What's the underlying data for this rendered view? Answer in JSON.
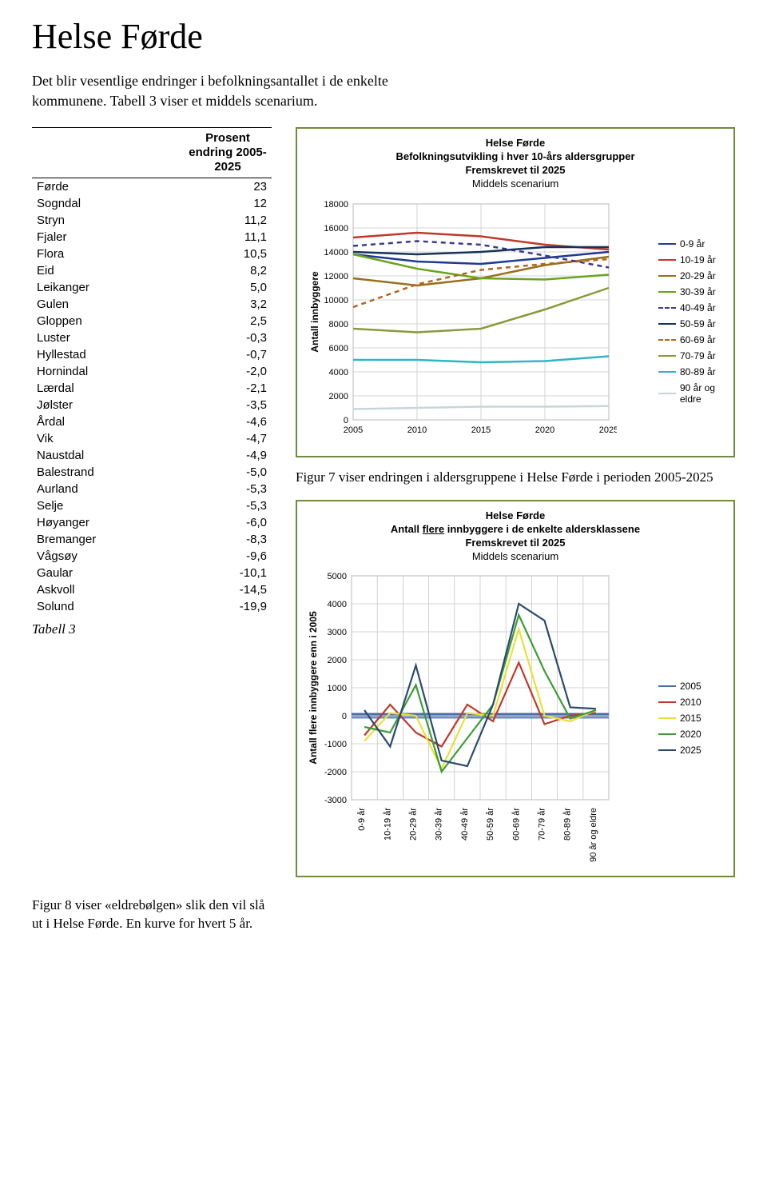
{
  "page_title": "Helse Førde",
  "intro_text": "Det blir vesentlige endringer i befolkningsantallet i de enkelte kommunene. Tabell 3 viser et middels scenarium.",
  "table": {
    "header_col1": "",
    "header_col2": "Prosent endring 2005-2025",
    "rows": [
      {
        "name": "Førde",
        "val": "23"
      },
      {
        "name": "Sogndal",
        "val": "12"
      },
      {
        "name": "Stryn",
        "val": "11,2"
      },
      {
        "name": "Fjaler",
        "val": "11,1"
      },
      {
        "name": "Flora",
        "val": "10,5"
      },
      {
        "name": "Eid",
        "val": "8,2"
      },
      {
        "name": "Leikanger",
        "val": "5,0"
      },
      {
        "name": "Gulen",
        "val": "3,2"
      },
      {
        "name": "Gloppen",
        "val": "2,5"
      },
      {
        "name": "Luster",
        "val": "-0,3"
      },
      {
        "name": "Hyllestad",
        "val": "-0,7"
      },
      {
        "name": "Hornindal",
        "val": "-2,0"
      },
      {
        "name": "Lærdal",
        "val": "-2,1"
      },
      {
        "name": "Jølster",
        "val": "-3,5"
      },
      {
        "name": "Årdal",
        "val": "-4,6"
      },
      {
        "name": "Vik",
        "val": "-4,7"
      },
      {
        "name": "Naustdal",
        "val": "-4,9"
      },
      {
        "name": "Balestrand",
        "val": "-5,0"
      },
      {
        "name": "Aurland",
        "val": "-5,3"
      },
      {
        "name": "Selje",
        "val": "-5,3"
      },
      {
        "name": "Høyanger",
        "val": "-6,0"
      },
      {
        "name": "Bremanger",
        "val": "-8,3"
      },
      {
        "name": "Vågsøy",
        "val": "-9,6"
      },
      {
        "name": "Gaular",
        "val": "-10,1"
      },
      {
        "name": "Askvoll",
        "val": "-14,5"
      },
      {
        "name": "Solund",
        "val": "-19,9"
      }
    ],
    "caption": "Tabell 3"
  },
  "chart1": {
    "title_line1": "Helse Førde",
    "title_line2": "Befolkningsutvikling i hver 10-års aldersgrupper",
    "title_line3": "Fremskrevet til 2025",
    "title_line4": "Middels scenarium",
    "y_label": "Antall innbyggere",
    "y_ticks": [
      0,
      2000,
      4000,
      6000,
      8000,
      10000,
      12000,
      14000,
      16000,
      18000
    ],
    "x_ticks": [
      2005,
      2010,
      2015,
      2020,
      2025
    ],
    "ylim": [
      0,
      18000
    ],
    "xlim": [
      2005,
      2025
    ],
    "grid_color": "#c8c8c8",
    "plot_bg": "#ffffff",
    "series": [
      {
        "name": "0-9 år",
        "color": "#1f3a93",
        "dash": "",
        "vals": [
          13800,
          13200,
          13000,
          13500,
          14000
        ]
      },
      {
        "name": "10-19 år",
        "color": "#c0392b",
        "dash": "",
        "vals": [
          15200,
          15600,
          15300,
          14600,
          14200
        ]
      },
      {
        "name": "20-29 år",
        "color": "#96711d",
        "dash": "",
        "vals": [
          11800,
          11200,
          11800,
          12900,
          13600
        ]
      },
      {
        "name": "30-39 år",
        "color": "#6aa51e",
        "dash": "",
        "vals": [
          13800,
          12600,
          11800,
          11700,
          12100
        ]
      },
      {
        "name": "40-49 år",
        "color": "#3b3b8f",
        "dash": "6,5",
        "vals": [
          14500,
          14900,
          14600,
          13700,
          12700
        ]
      },
      {
        "name": "50-59 år",
        "color": "#16335a",
        "dash": "",
        "vals": [
          14000,
          13800,
          14000,
          14400,
          14400
        ]
      },
      {
        "name": "60-69 år",
        "color": "#b5651d",
        "dash": "6,5",
        "vals": [
          9400,
          11300,
          12500,
          13000,
          13400
        ]
      },
      {
        "name": "70-79 år",
        "color": "#8a9a3b",
        "dash": "",
        "vals": [
          7600,
          7300,
          7600,
          9200,
          11000
        ]
      },
      {
        "name": "80-89 år",
        "color": "#2fb4c9",
        "dash": "",
        "vals": [
          5000,
          5000,
          4800,
          4900,
          5300
        ]
      },
      {
        "name": "90 år og eldre",
        "color": "#c7d6d9",
        "dash": "",
        "vals": [
          900,
          1000,
          1100,
          1100,
          1150
        ]
      }
    ]
  },
  "fig7_caption": "Figur 7 viser endringen i aldersgruppene i Helse Førde i perioden 2005-2025",
  "chart2": {
    "title_line1": "Helse Førde",
    "title_line2_a": "Antall ",
    "title_line2_b": "flere",
    "title_line2_c": " innbyggere i de enkelte aldersklassene",
    "title_line3": "Fremskrevet til 2025",
    "title_line4": "Middels scenarium",
    "y_label": "Antall flere innbyggere enn i 2005",
    "y_ticks": [
      -3000,
      -2000,
      -1000,
      0,
      1000,
      2000,
      3000,
      4000,
      5000
    ],
    "ylim": [
      -3000,
      5000
    ],
    "x_categories": [
      "0-9 år",
      "10-19 år",
      "20-29 år",
      "30-39 år",
      "40-49 år",
      "50-59 år",
      "60-69 år",
      "70-79 år",
      "80-89 år",
      "90 år og eldre"
    ],
    "grid_color": "#c8c8c8",
    "plot_bg": "#ffffff",
    "baseline_colors": [
      "#4a6da7",
      "#6f8fc4"
    ],
    "series": [
      {
        "name": "2005",
        "color": "#4a6da7",
        "vals": [
          0,
          0,
          0,
          0,
          0,
          0,
          0,
          0,
          0,
          0
        ]
      },
      {
        "name": "2010",
        "color": "#c0392b",
        "vals": [
          -700,
          400,
          -600,
          -1100,
          400,
          -200,
          1900,
          -300,
          0,
          100
        ]
      },
      {
        "name": "2015",
        "color": "#e8e13a",
        "vals": [
          -900,
          100,
          0,
          -1900,
          100,
          0,
          3100,
          0,
          -200,
          200
        ]
      },
      {
        "name": "2020",
        "color": "#3d9c35",
        "vals": [
          -400,
          -600,
          1100,
          -2000,
          -800,
          400,
          3600,
          1600,
          -100,
          200
        ]
      },
      {
        "name": "2025",
        "color": "#2a4b6e",
        "vals": [
          200,
          -1100,
          1800,
          -1600,
          -1800,
          400,
          4000,
          3400,
          300,
          250
        ]
      }
    ]
  },
  "fig8_caption": "Figur 8 viser «eldrebølgen» slik den vil slå ut i Helse Førde. En kurve for hvert 5 år."
}
